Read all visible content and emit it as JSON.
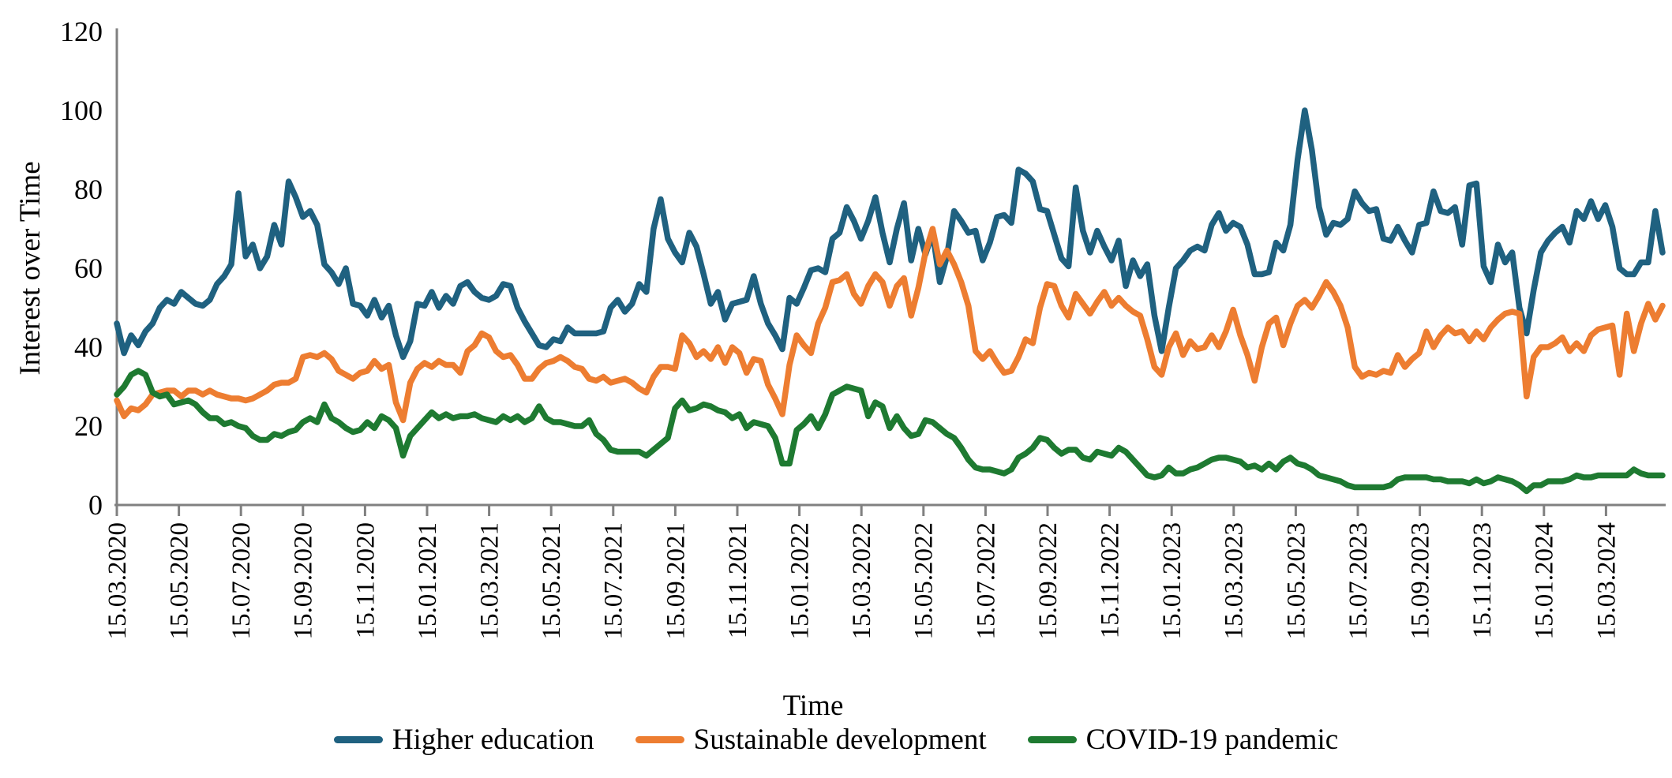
{
  "chart_data": {
    "type": "line",
    "title": "",
    "xlabel": "Time",
    "ylabel": "Interest over Time",
    "ylim": [
      0,
      120
    ],
    "yticks": [
      0,
      20,
      40,
      60,
      80,
      100,
      120
    ],
    "grid": false,
    "legend_position": "bottom",
    "x_start_label": "15.03.2020",
    "x_sampling": "weekly",
    "xtick_labels": [
      "15.03.2020",
      "15.05.2020",
      "15.07.2020",
      "15.09.2020",
      "15.11.2020",
      "15.01.2021",
      "15.03.2021",
      "15.05.2021",
      "15.07.2021",
      "15.09.2021",
      "15.11.2021",
      "15.01.2022",
      "15.03.2022",
      "15.05.2022",
      "15.07.2022",
      "15.09.2022",
      "15.11.2022",
      "15.01.2023",
      "15.03.2023",
      "15.05.2023",
      "15.07.2023",
      "15.09.2023",
      "15.11.2023",
      "15.01.2024",
      "15.03.2024"
    ],
    "series": [
      {
        "name": "Higher education",
        "color": "#1F6180",
        "values": [
          46,
          38.5,
          43,
          40.5,
          44,
          46,
          50,
          52,
          51,
          54,
          52.5,
          51,
          50.5,
          52,
          56,
          58,
          61,
          79,
          63,
          66,
          60,
          63,
          71,
          66,
          82,
          78,
          73,
          74.5,
          71,
          61,
          59,
          56,
          60,
          51,
          50.5,
          48,
          52,
          47.5,
          50.5,
          43,
          37.5,
          41.5,
          51,
          50.5,
          54,
          50,
          53,
          51,
          55.5,
          56.5,
          54,
          52.5,
          52,
          53,
          56,
          55.5,
          50,
          46.5,
          43.5,
          40.5,
          40,
          42,
          41.5,
          45,
          43.5,
          43.5,
          43.5,
          43.5,
          44,
          50,
          52,
          49,
          51,
          56,
          54,
          70,
          77.5,
          67.5,
          64,
          61.5,
          69,
          65.5,
          58.5,
          51,
          54,
          47,
          51,
          51.5,
          52,
          58,
          51,
          46,
          43,
          39.5,
          52.5,
          51,
          55,
          59.5,
          60,
          59,
          67.5,
          69,
          75.5,
          72,
          67.5,
          72,
          78,
          69,
          61.5,
          70,
          76.5,
          62,
          70,
          63.5,
          69,
          56.5,
          63,
          74.5,
          72,
          69,
          69.5,
          62,
          66.5,
          73,
          73.5,
          71.5,
          85,
          84,
          82,
          75,
          74.5,
          68.5,
          62.5,
          60.5,
          80.5,
          69.5,
          64,
          69.5,
          65.5,
          62,
          67,
          55.5,
          62,
          58,
          61,
          48,
          39,
          50,
          60,
          62,
          64.5,
          65.5,
          64.5,
          71,
          74,
          69.5,
          71.5,
          70.5,
          66,
          58.5,
          58.5,
          59,
          66.5,
          64.5,
          71,
          87.5,
          100,
          90,
          75.5,
          68.5,
          71.5,
          71,
          72.5,
          79.5,
          76.5,
          74.5,
          75,
          67.5,
          67,
          70.5,
          67,
          64,
          71,
          71.5,
          79.5,
          74.5,
          74,
          75.5,
          66,
          81,
          81.5,
          60.5,
          56.5,
          66,
          61.5,
          64,
          50,
          43.5,
          54.5,
          64,
          67,
          69,
          70.5,
          66.5,
          74.5,
          72.5,
          77,
          72.5,
          76,
          70.5,
          60,
          58.5,
          58.5,
          61.5,
          61.5,
          74.5,
          64
        ]
      },
      {
        "name": "Sustainable development",
        "color": "#ED7D31",
        "values": [
          26.5,
          22.5,
          24.5,
          24,
          25.5,
          28,
          28.5,
          29,
          29,
          27.5,
          29,
          29,
          28,
          29,
          28,
          27.5,
          27,
          27,
          26.5,
          27,
          28,
          29,
          30.5,
          31,
          31,
          32,
          37.5,
          38,
          37.5,
          38.5,
          37,
          34,
          33,
          32,
          33.5,
          34,
          36.5,
          34.5,
          35.5,
          26,
          21.5,
          31,
          34.5,
          36,
          35,
          36.5,
          35.5,
          35.5,
          33.5,
          39,
          40.5,
          43.5,
          42.5,
          39,
          37.5,
          38,
          35.5,
          32,
          32,
          34.5,
          36,
          36.5,
          37.5,
          36.5,
          35,
          34.5,
          32,
          31.5,
          32.5,
          31,
          31.5,
          32,
          31,
          29.5,
          28.5,
          32.5,
          35,
          35,
          34.5,
          43,
          41,
          37.5,
          39,
          37,
          40,
          36,
          40,
          38.5,
          33.5,
          37,
          36.5,
          30.5,
          27,
          23,
          35.5,
          43,
          40.5,
          38.5,
          46,
          50,
          56.5,
          57,
          58.5,
          53.5,
          51,
          55.5,
          58.5,
          56.5,
          50.5,
          55.5,
          57.5,
          48,
          55,
          64,
          70,
          61,
          64.5,
          61,
          56.5,
          50.5,
          39,
          37,
          39,
          36,
          33.5,
          34,
          37.5,
          42,
          41,
          50,
          56,
          55.5,
          50.5,
          47.5,
          53.5,
          51,
          48.5,
          51.5,
          54,
          50.5,
          52.5,
          50.5,
          49,
          48,
          42,
          35,
          33,
          40,
          43.5,
          38,
          41.5,
          39.5,
          40,
          43,
          40,
          44,
          49.5,
          43,
          38,
          31.5,
          40,
          46,
          47.5,
          40.5,
          46,
          50.5,
          52,
          50,
          53,
          56.5,
          54,
          50.5,
          45,
          35,
          32.5,
          33.5,
          33,
          34,
          33.5,
          38,
          35,
          37,
          38.5,
          44,
          40,
          43,
          45,
          43.5,
          44,
          41.5,
          44,
          42,
          45,
          47,
          48.5,
          49,
          48.5,
          27.5,
          37.5,
          40,
          40,
          41,
          42.5,
          39,
          41,
          39,
          43,
          44.5,
          45,
          45.5,
          33,
          48.5,
          39,
          46,
          51,
          47,
          50.5
        ]
      },
      {
        "name": "COVID-19 pandemic",
        "color": "#1E7A31",
        "values": [
          28,
          30,
          33,
          34,
          33,
          28.5,
          27.5,
          28,
          25.5,
          26,
          26.5,
          25.5,
          23.5,
          22,
          22,
          20.5,
          21,
          20,
          19.5,
          17.5,
          16.5,
          16.5,
          18,
          17.5,
          18.5,
          19,
          21,
          22,
          21,
          25.5,
          22,
          21,
          19.5,
          18.5,
          19,
          21,
          19.5,
          22.5,
          21.5,
          19.5,
          12.5,
          17.5,
          19.5,
          21.5,
          23.5,
          22,
          23,
          22,
          22.5,
          22.5,
          23,
          22,
          21.5,
          21,
          22.5,
          21.5,
          22.5,
          21,
          22,
          25,
          22,
          21,
          21,
          20.5,
          20,
          20,
          21.5,
          18,
          16.5,
          14,
          13.5,
          13.5,
          13.5,
          13.5,
          12.5,
          14,
          15.5,
          17,
          24.5,
          26.5,
          24,
          24.5,
          25.5,
          25,
          24,
          23.5,
          22,
          23,
          19.5,
          21,
          20.5,
          20,
          17,
          10.5,
          10.5,
          19,
          20.5,
          22.5,
          19.5,
          23,
          28,
          29,
          30,
          29.5,
          29,
          22.5,
          26,
          25,
          19.5,
          22.5,
          19.5,
          17.5,
          18,
          21.5,
          21,
          19.5,
          18,
          17,
          14.5,
          11.5,
          9.5,
          9,
          9,
          8.5,
          8,
          9,
          12,
          13,
          14.5,
          17,
          16.5,
          14.5,
          13,
          14,
          14,
          12,
          11.5,
          13.5,
          13,
          12.5,
          14.5,
          13.5,
          11.5,
          9.5,
          7.5,
          7,
          7.5,
          9.5,
          8,
          8,
          9,
          9.5,
          10.5,
          11.5,
          12,
          12,
          11.5,
          11,
          9.5,
          10,
          9,
          10.5,
          9,
          11,
          12,
          10.5,
          10,
          9,
          7.5,
          7,
          6.5,
          6,
          5,
          4.5,
          4.5,
          4.5,
          4.5,
          4.5,
          5,
          6.5,
          7,
          7,
          7,
          7,
          6.5,
          6.5,
          6,
          6,
          6,
          5.5,
          6.5,
          5.5,
          6,
          7,
          6.5,
          6,
          5,
          3.5,
          5,
          5,
          6,
          6,
          6,
          6.5,
          7.5,
          7,
          7,
          7.5,
          7.5,
          7.5,
          7.5,
          7.5,
          9,
          8,
          7.5,
          7.5,
          7.5
        ]
      }
    ]
  },
  "layout_colors": {
    "axis": "#808080",
    "text": "#000000",
    "background": "#ffffff"
  }
}
